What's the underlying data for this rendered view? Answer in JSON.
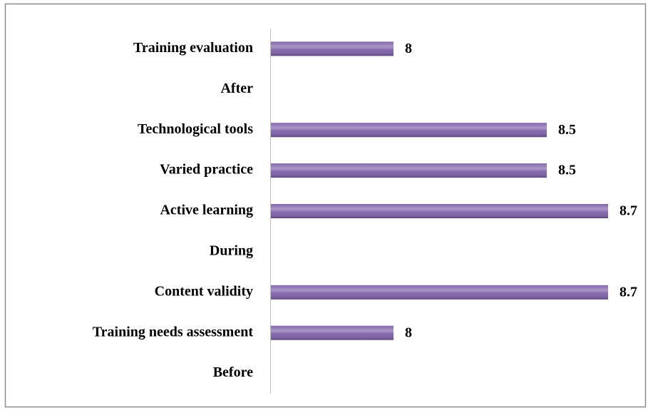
{
  "chart_data": {
    "type": "bar",
    "orientation": "horizontal",
    "categories": [
      "Training evaluation",
      "After",
      "Technological tools",
      "Varied practice",
      "Active learning",
      "During",
      "Content validity",
      "Training needs assessment",
      "Before"
    ],
    "values": [
      8,
      null,
      8.5,
      8.5,
      8.7,
      null,
      8.7,
      8,
      null
    ],
    "color": "#7d5fa8",
    "xlim": [
      7.6,
      8.8
    ]
  }
}
